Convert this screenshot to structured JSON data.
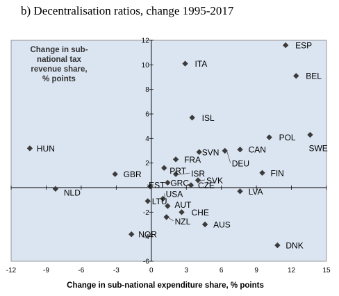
{
  "title": "b) Decentralisation ratios, change 1995-2017",
  "chart_data": {
    "type": "scatter",
    "title": "b) Decentralisation ratios, change 1995-2017",
    "xlabel": "Change in sub-national expenditure share, % points",
    "ylabel_lines": [
      "Change in sub-",
      "national tax",
      "revenue share,",
      "% points"
    ],
    "xlim": [
      -12,
      15
    ],
    "ylim": [
      -6,
      12
    ],
    "xticks": [
      -12,
      -9,
      -6,
      -3,
      0,
      3,
      6,
      9,
      12,
      15
    ],
    "yticks": [
      -6,
      -4,
      -2,
      0,
      2,
      4,
      6,
      8,
      10,
      12
    ],
    "grid": false,
    "marker_color": "#3b3b3b",
    "plot_background": "#dbe5f1",
    "points": [
      {
        "label": "ESP",
        "x": 11.5,
        "y": 11.6
      },
      {
        "label": "ITA",
        "x": 2.9,
        "y": 10.1
      },
      {
        "label": "BEL",
        "x": 12.4,
        "y": 9.1
      },
      {
        "label": "ISL",
        "x": 3.5,
        "y": 5.7
      },
      {
        "label": "POL",
        "x": 10.1,
        "y": 4.1
      },
      {
        "label": "SWE",
        "x": 13.6,
        "y": 4.3
      },
      {
        "label": "HUN",
        "x": -10.4,
        "y": 3.2
      },
      {
        "label": "SVN",
        "x": 4.1,
        "y": 2.9
      },
      {
        "label": "CAN",
        "x": 7.6,
        "y": 3.1
      },
      {
        "label": "DEU",
        "x": 6.3,
        "y": 3.0
      },
      {
        "label": "FRA",
        "x": 2.1,
        "y": 2.3
      },
      {
        "label": "PRT",
        "x": 1.1,
        "y": 1.6
      },
      {
        "label": "ISR",
        "x": 2.1,
        "y": 1.1
      },
      {
        "label": "FIN",
        "x": 9.5,
        "y": 1.2
      },
      {
        "label": "GBR",
        "x": -3.1,
        "y": 1.1
      },
      {
        "label": "SVK",
        "x": 4.0,
        "y": 0.6
      },
      {
        "label": "GRC",
        "x": 1.4,
        "y": 0.4
      },
      {
        "label": "EST",
        "x": -0.1,
        "y": 0.1
      },
      {
        "label": "CZE",
        "x": 3.4,
        "y": 0.2
      },
      {
        "label": "NLD",
        "x": -8.2,
        "y": -0.1
      },
      {
        "label": "LVA",
        "x": 7.6,
        "y": -0.3
      },
      {
        "label": "LTU",
        "x": -0.3,
        "y": -1.1
      },
      {
        "label": "USA",
        "x": 1.0,
        "y": -0.9
      },
      {
        "label": "AUT",
        "x": 1.4,
        "y": -1.5
      },
      {
        "label": "CHE",
        "x": 2.6,
        "y": -2.0
      },
      {
        "label": "NZL",
        "x": 1.3,
        "y": -2.4
      },
      {
        "label": "AUS",
        "x": 4.6,
        "y": -3.0
      },
      {
        "label": "NOR",
        "x": -1.7,
        "y": -3.8
      },
      {
        "label": "DNK",
        "x": 10.8,
        "y": -4.7
      }
    ]
  }
}
